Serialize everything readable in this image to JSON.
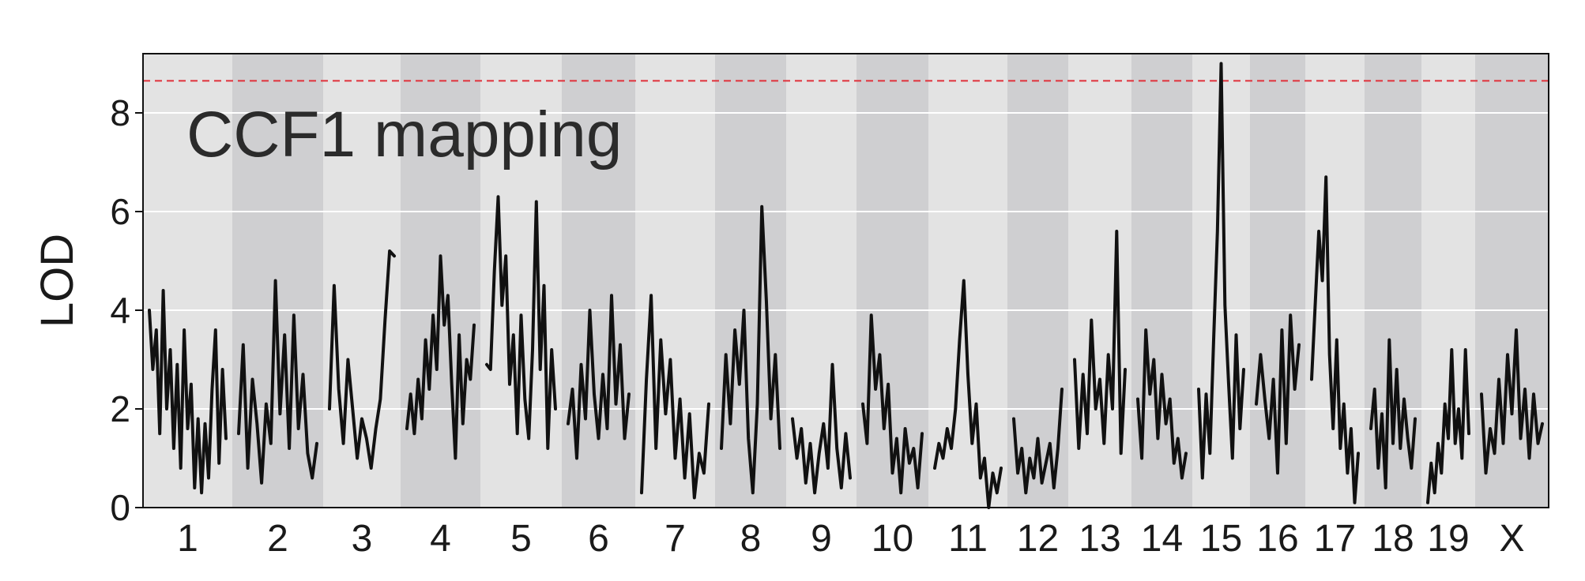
{
  "chart_data": {
    "type": "line",
    "title": "",
    "annotation": "CCF1 mapping",
    "xlabel": "",
    "ylabel": "LOD",
    "ylim": [
      0,
      9.2
    ],
    "yticks": [
      0,
      2,
      4,
      6,
      8
    ],
    "grid": true,
    "threshold": 8.65,
    "colors": {
      "line": "#111111",
      "threshold": "#e0303a",
      "band_light": "#e3e3e3",
      "band_dark": "#cfcfd1",
      "grid": "#ffffff"
    },
    "chromosomes": [
      {
        "name": "1",
        "points": [
          4.0,
          2.8,
          3.6,
          1.5,
          4.4,
          2.0,
          3.2,
          1.2,
          2.9,
          0.8,
          3.6,
          1.6,
          2.5,
          0.4,
          1.8,
          0.3,
          1.7,
          0.6,
          2.4,
          3.6,
          0.9,
          2.8,
          1.4
        ]
      },
      {
        "name": "2",
        "points": [
          1.5,
          3.3,
          0.8,
          2.6,
          1.7,
          0.5,
          2.1,
          1.3,
          4.6,
          1.9,
          3.5,
          1.2,
          3.9,
          1.6,
          2.7,
          1.1,
          0.6,
          1.3
        ]
      },
      {
        "name": "3",
        "points": [
          2.0,
          4.5,
          2.4,
          1.3,
          3.0,
          2.0,
          1.0,
          1.8,
          1.4,
          0.8,
          1.6,
          2.2,
          3.8,
          5.2,
          5.1
        ]
      },
      {
        "name": "4",
        "points": [
          1.6,
          2.3,
          1.5,
          2.6,
          1.8,
          3.4,
          2.4,
          3.9,
          2.8,
          5.1,
          3.7,
          4.3,
          2.5,
          1.0,
          3.5,
          1.7,
          3.0,
          2.6,
          3.7
        ]
      },
      {
        "name": "5",
        "points": [
          2.9,
          2.8,
          4.8,
          6.3,
          4.1,
          5.1,
          2.5,
          3.5,
          1.5,
          3.9,
          2.2,
          1.4,
          3.2,
          6.2,
          2.8,
          4.5,
          1.2,
          3.2,
          2.0
        ]
      },
      {
        "name": "6",
        "points": [
          1.7,
          2.4,
          1.0,
          2.9,
          1.8,
          4.0,
          2.3,
          1.4,
          2.7,
          1.6,
          4.3,
          2.1,
          3.3,
          1.4,
          2.3
        ]
      },
      {
        "name": "7",
        "points": [
          0.3,
          2.6,
          4.3,
          1.2,
          3.4,
          1.9,
          3.0,
          1.0,
          2.2,
          0.6,
          1.9,
          0.2,
          1.1,
          0.7,
          2.1
        ]
      },
      {
        "name": "8",
        "points": [
          1.2,
          3.1,
          1.7,
          3.6,
          2.5,
          4.0,
          1.4,
          0.3,
          2.1,
          6.1,
          4.2,
          1.8,
          3.1,
          1.2
        ]
      },
      {
        "name": "9",
        "points": [
          1.8,
          1.0,
          1.6,
          0.5,
          1.3,
          0.3,
          1.1,
          1.7,
          0.8,
          2.9,
          1.2,
          0.4,
          1.5,
          0.6
        ]
      },
      {
        "name": "10",
        "points": [
          2.1,
          1.3,
          3.9,
          2.4,
          3.1,
          1.6,
          2.5,
          0.7,
          1.4,
          0.3,
          1.6,
          0.9,
          1.2,
          0.4,
          1.5
        ]
      },
      {
        "name": "11",
        "points": [
          0.8,
          1.3,
          1.0,
          1.6,
          1.2,
          2.0,
          3.4,
          4.6,
          2.7,
          1.3,
          2.1,
          0.6,
          1.0,
          0.0,
          0.7,
          0.3,
          0.8
        ]
      },
      {
        "name": "12",
        "points": [
          1.8,
          0.7,
          1.2,
          0.3,
          1.0,
          0.6,
          1.4,
          0.5,
          0.9,
          1.3,
          0.4,
          1.2,
          2.4
        ]
      },
      {
        "name": "13",
        "points": [
          3.0,
          1.2,
          2.7,
          1.5,
          3.8,
          2.0,
          2.6,
          1.3,
          3.1,
          2.0,
          5.6,
          1.1,
          2.8
        ]
      },
      {
        "name": "14",
        "points": [
          2.2,
          1.0,
          3.6,
          2.3,
          3.0,
          1.4,
          2.7,
          1.7,
          2.2,
          0.9,
          1.4,
          0.6,
          1.1
        ]
      },
      {
        "name": "15",
        "points": [
          2.4,
          0.6,
          2.3,
          1.1,
          3.4,
          5.6,
          9.0,
          4.1,
          2.5,
          1.0,
          3.5,
          1.6,
          2.8
        ]
      },
      {
        "name": "16",
        "points": [
          2.1,
          3.1,
          2.2,
          1.4,
          2.6,
          0.7,
          3.6,
          1.3,
          3.9,
          2.4,
          3.3
        ]
      },
      {
        "name": "17",
        "points": [
          2.6,
          4.1,
          5.6,
          4.6,
          6.7,
          3.1,
          1.6,
          3.4,
          1.2,
          2.1,
          0.7,
          1.6,
          0.1,
          1.1
        ]
      },
      {
        "name": "18",
        "points": [
          1.6,
          2.4,
          0.8,
          1.9,
          0.4,
          3.4,
          1.3,
          2.8,
          1.2,
          2.2,
          1.4,
          0.8,
          1.8
        ]
      },
      {
        "name": "19",
        "points": [
          0.1,
          0.9,
          0.3,
          1.3,
          0.7,
          2.1,
          1.4,
          3.2,
          1.3,
          2.0,
          1.0,
          3.2,
          1.5
        ]
      },
      {
        "name": "X",
        "points": [
          2.3,
          0.7,
          1.6,
          1.1,
          2.6,
          1.3,
          3.1,
          1.9,
          3.6,
          1.4,
          2.4,
          1.0,
          2.3,
          1.3,
          1.7
        ]
      }
    ]
  }
}
